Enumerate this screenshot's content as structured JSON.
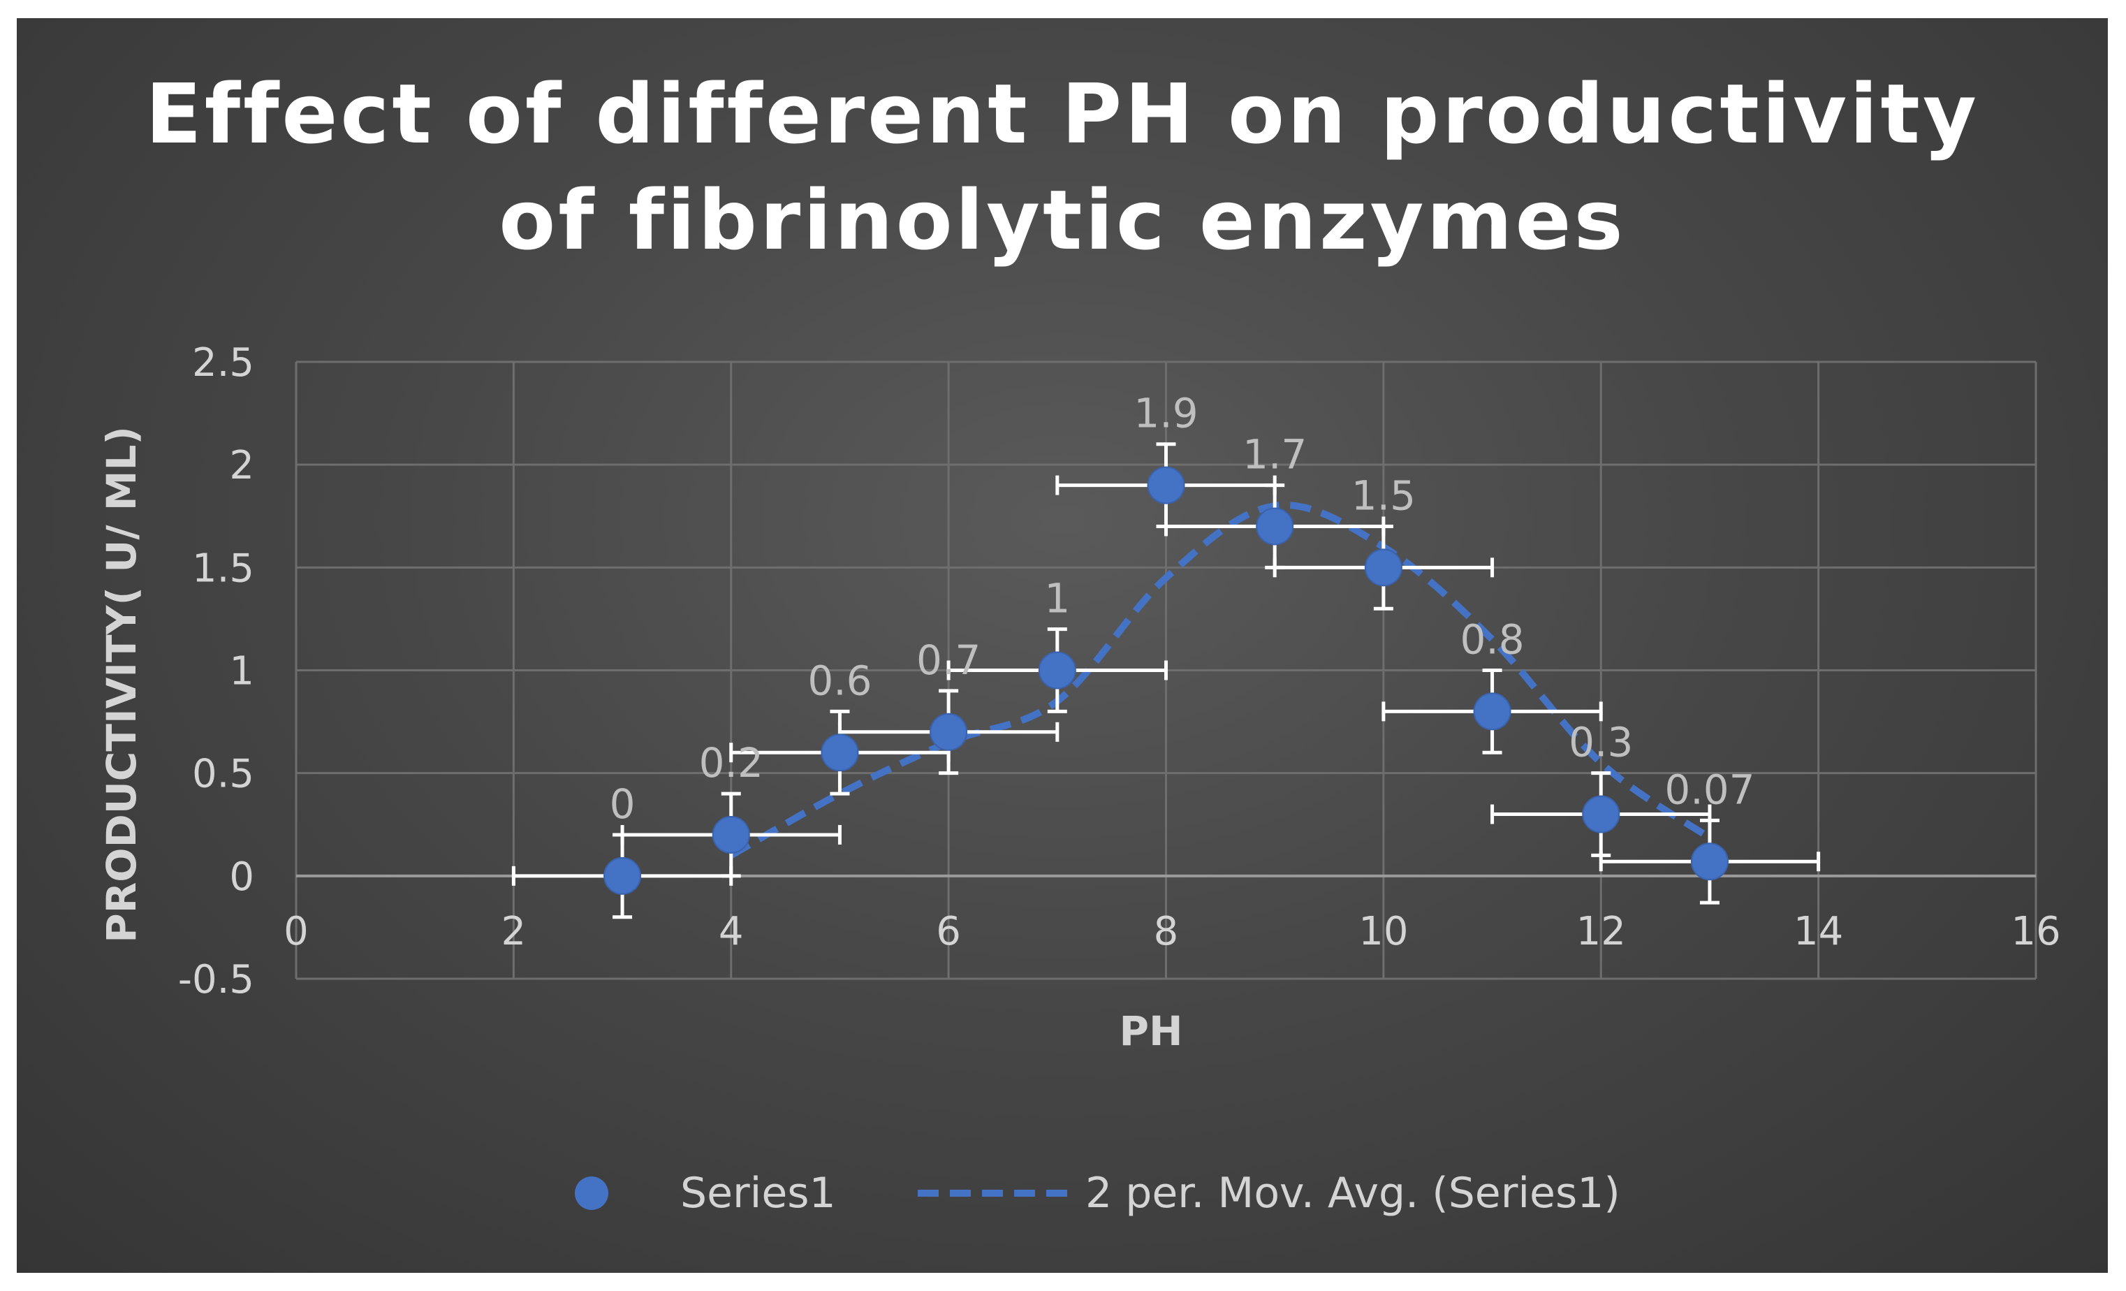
{
  "chart_data": {
    "type": "scatter",
    "title_line1": "Effect of different PH on productivity",
    "title_line2": "of fibrinolytic enzymes",
    "xlabel": "PH",
    "ylabel": "PRODUCTIVITY( U/ ML)",
    "xlim": [
      0,
      16
    ],
    "ylim": [
      -0.5,
      2.5
    ],
    "x_ticks": [
      0,
      2,
      4,
      6,
      8,
      10,
      12,
      14,
      16
    ],
    "y_ticks": [
      -0.5,
      0,
      0.5,
      1,
      1.5,
      2,
      2.5
    ],
    "x_tick_labels": [
      "0",
      "2",
      "4",
      "6",
      "8",
      "10",
      "12",
      "14",
      "16"
    ],
    "y_tick_labels": [
      "-0.5",
      "0",
      "0.5",
      "1",
      "1.5",
      "2",
      "2.5"
    ],
    "grid": true,
    "legend_position": "bottom",
    "x_error": 1,
    "y_error": 0.2,
    "series": [
      {
        "name": "Series1",
        "x": [
          3,
          4,
          5,
          6,
          7,
          8,
          9,
          10,
          11,
          12,
          13
        ],
        "y": [
          0,
          0.2,
          0.6,
          0.7,
          1,
          1.9,
          1.7,
          1.5,
          0.8,
          0.3,
          0.07
        ],
        "data_labels": [
          "0",
          "0.2",
          "0.6",
          "0.7",
          "1",
          "1.9",
          "1.7",
          "1.5",
          "0.8",
          "0.3",
          "0.07"
        ],
        "color": "#4472c4"
      },
      {
        "name": "2 per. Mov. Avg. (Series1)",
        "type": "trendline-moving-average",
        "period": 2,
        "x": [
          4,
          5,
          6,
          7,
          8,
          9,
          10,
          11,
          12,
          13
        ],
        "y": [
          0.1,
          0.4,
          0.65,
          0.85,
          1.45,
          1.8,
          1.6,
          1.15,
          0.55,
          0.185
        ],
        "color": "#4472c4"
      }
    ],
    "colors": {
      "marker": "#4472c4",
      "trendline": "#4472c4",
      "error_bar": "#ffffff",
      "grid": "#6e6e6e"
    }
  }
}
